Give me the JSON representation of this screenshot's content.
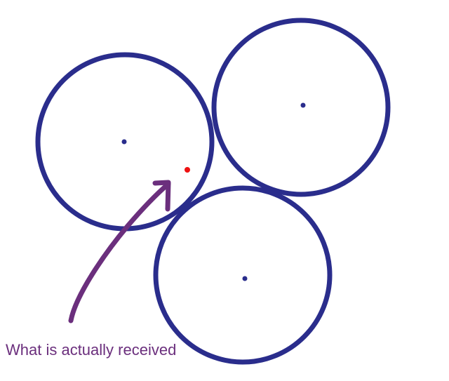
{
  "annotation": {
    "label": "What is actually received"
  },
  "colors": {
    "circle": "#2a2d8c",
    "center_dot": "#2a2d8c",
    "received_point": "#ee1111",
    "arrow": "#6b2f7d",
    "label": "#6b2f7d",
    "background": "#ffffff"
  },
  "elements": {
    "circles": [
      "circle-left",
      "circle-right",
      "circle-bottom"
    ],
    "received_point": "received-point-dot",
    "arrow": "curved-arrow"
  }
}
